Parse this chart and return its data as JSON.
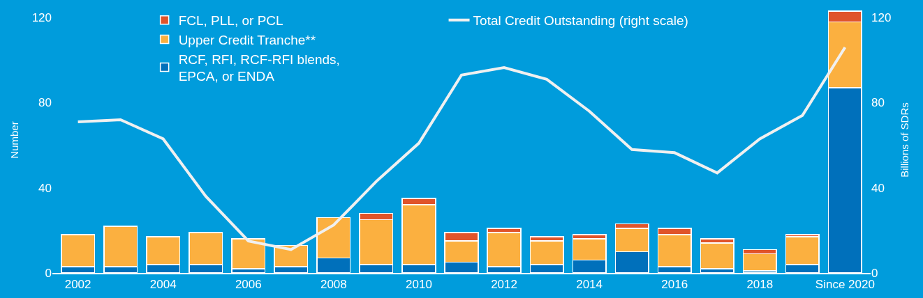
{
  "chart_data": {
    "type": "bar",
    "stacked": true,
    "ylabel": "Number",
    "y2label": "Billions of SDRs",
    "categories": [
      "2002",
      null,
      "2004",
      null,
      "2006",
      null,
      "2008",
      null,
      "2010",
      null,
      "2012",
      null,
      "2014",
      null,
      "2016",
      null,
      "2018",
      null,
      "Since 2020"
    ],
    "series": [
      {
        "name": "RCF, RFI, RCF-RFI blends,\nEPCA, or ENDA",
        "color": "#0070bb",
        "values": [
          3,
          3,
          4,
          4,
          2,
          3,
          7,
          4,
          4,
          5,
          3,
          4,
          6,
          10,
          3,
          2,
          1,
          4,
          87
        ]
      },
      {
        "name": "Upper Credit Tranche**",
        "color": "#fbb040",
        "values": [
          15,
          19,
          13,
          15,
          14,
          10,
          19,
          21,
          28,
          10,
          16,
          11,
          10,
          11,
          15,
          12,
          8,
          13,
          31
        ]
      },
      {
        "name": "FCL, PLL, or PCL",
        "color": "#e0542a",
        "values": [
          null,
          null,
          null,
          null,
          null,
          null,
          null,
          3,
          3,
          4,
          2,
          2,
          2,
          2,
          3,
          2,
          2,
          1,
          5
        ]
      },
      {
        "name": "Total Credit Outstanding (right scale)",
        "type": "line",
        "axis": "y2",
        "color": "#f0f0f0",
        "values": [
          71,
          72,
          63,
          36,
          15,
          11,
          22.5,
          43,
          61,
          93,
          96.5,
          91,
          76,
          58,
          56.5,
          47,
          63,
          74,
          106
        ]
      }
    ],
    "ylim": [
      0,
      125
    ],
    "yticks": [
      0,
      40,
      80,
      120
    ],
    "y2lim": [
      0,
      125
    ],
    "y2ticks": [
      0,
      40,
      80,
      120
    ],
    "grid": false,
    "legend": "top",
    "marker": "none",
    "line_style": "solid"
  }
}
